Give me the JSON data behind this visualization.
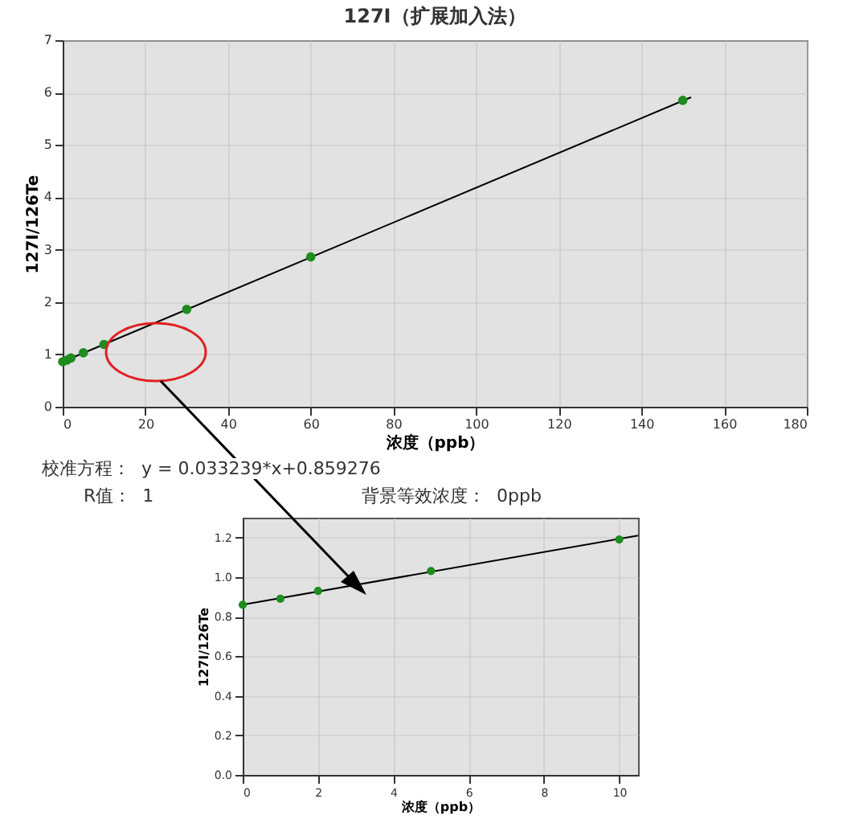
{
  "chart_data": [
    {
      "type": "scatter",
      "title": "127I（扩展加入法）",
      "xlabel": "浓度（ppb）",
      "ylabel": "127I/126Te",
      "xlim": [
        0,
        180
      ],
      "xticks": [
        0,
        20,
        40,
        60,
        80,
        100,
        120,
        140,
        160,
        180
      ],
      "ylim": [
        0,
        7
      ],
      "yticks": [
        0,
        1,
        2,
        3,
        4,
        5,
        6,
        7
      ],
      "grid": true,
      "legend": false,
      "marker": "circle",
      "series": [
        {
          "color": "#1e8c1e",
          "x": [
            0,
            1,
            2,
            5,
            10,
            30,
            60,
            150
          ],
          "values": [
            0.86,
            0.89,
            0.93,
            1.03,
            1.19,
            1.86,
            2.86,
            5.85
          ]
        },
        {
          "type": "line",
          "marker": "none",
          "line_style": "solid",
          "color": "#000000",
          "x": [
            0,
            152
          ],
          "values": [
            0.86,
            5.91
          ]
        }
      ],
      "annotations": [
        "校准方程：  y = 0.033239*x+0.859276",
        "R值：  1",
        "背景等效浓度：  0ppb"
      ]
    },
    {
      "type": "scatter",
      "xlabel": "浓度（ppb）",
      "ylabel": "127I/126Te",
      "xlim": [
        0,
        10.5
      ],
      "xticks": [
        0,
        2,
        4,
        6,
        8,
        10
      ],
      "ylim": [
        0,
        1.3
      ],
      "yticks": [
        {
          "value": 0,
          "label": "0.0"
        },
        {
          "value": 0.2,
          "label": "0.2"
        },
        {
          "value": 0.4,
          "label": "0.4"
        },
        {
          "value": 0.6,
          "label": "0.6"
        },
        {
          "value": 0.8,
          "label": "0.8"
        },
        {
          "value": 1,
          "label": "1.0"
        },
        {
          "value": 1.2,
          "label": "1.2"
        }
      ],
      "grid": true,
      "legend": false,
      "marker": "circle",
      "series": [
        {
          "color": "#1e8c1e",
          "x": [
            0,
            1,
            2,
            5,
            10
          ],
          "values": [
            0.86,
            0.89,
            0.93,
            1.03,
            1.19
          ]
        },
        {
          "type": "line",
          "marker": "none",
          "line_style": "solid",
          "color": "#000000",
          "x": [
            0,
            10.5
          ],
          "values": [
            0.86,
            1.21
          ]
        }
      ]
    }
  ]
}
